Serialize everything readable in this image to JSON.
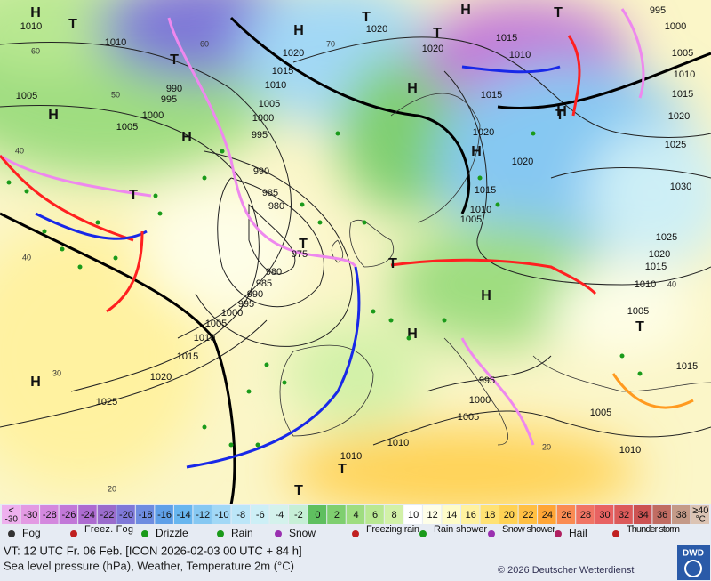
{
  "map": {
    "pressure_labels": [
      "1010",
      "1010",
      "1005",
      "1005",
      "1000",
      "990",
      "995",
      "1015",
      "1010",
      "1005",
      "1000",
      "995",
      "990",
      "985",
      "980",
      "975",
      "980",
      "985",
      "990",
      "995",
      "1000",
      "1005",
      "1010",
      "1015",
      "1020",
      "1025",
      "1020",
      "1020",
      "1020",
      "1015",
      "1010",
      "1015",
      "1020",
      "1020",
      "1015",
      "1010",
      "1005",
      "1000",
      "1005",
      "1010",
      "1015",
      "1020",
      "1025",
      "1030",
      "1025",
      "1020",
      "1015",
      "1010",
      "1005",
      "995",
      "1015",
      "1005",
      "1010",
      "1000",
      "995",
      "1005",
      "1010",
      "1010"
    ],
    "centers": [
      "H",
      "T",
      "H",
      "H",
      "T",
      "H",
      "T",
      "H",
      "T",
      "H",
      "T",
      "H",
      "T",
      "H",
      "T",
      "T",
      "T",
      "H",
      "H",
      "T",
      "H",
      "T",
      "T"
    ],
    "temperature_labels": [
      "60",
      "50",
      "40",
      "40",
      "30",
      "20",
      "20",
      "60",
      "70",
      "40"
    ]
  },
  "scale": {
    "cells": [
      {
        "label": "<",
        "label2": "-30",
        "color": "#eeb0ee"
      },
      {
        "label": "-30",
        "color": "#e39ae3"
      },
      {
        "label": "-28",
        "color": "#d488de"
      },
      {
        "label": "-26",
        "color": "#c278d8"
      },
      {
        "label": "-24",
        "color": "#ad6bd0"
      },
      {
        "label": "-22",
        "color": "#9a6ccc"
      },
      {
        "label": "-20",
        "color": "#7f78d8"
      },
      {
        "label": "-18",
        "color": "#6e8ce0"
      },
      {
        "label": "-16",
        "color": "#5fa0e8"
      },
      {
        "label": "-14",
        "color": "#68b6ef"
      },
      {
        "label": "-12",
        "color": "#86c8f2"
      },
      {
        "label": "-10",
        "color": "#a2d8f6"
      },
      {
        "label": "-8",
        "color": "#bce6f8"
      },
      {
        "label": "-6",
        "color": "#cdeff6"
      },
      {
        "label": "-4",
        "color": "#d4f2ec"
      },
      {
        "label": "-2",
        "color": "#c6efd6"
      },
      {
        "label": "0",
        "color": "#5fbf5f"
      },
      {
        "label": "2",
        "color": "#7fcf6f"
      },
      {
        "label": "4",
        "color": "#9fdd80"
      },
      {
        "label": "6",
        "color": "#b9e892"
      },
      {
        "label": "8",
        "color": "#d2f1a8"
      },
      {
        "label": "10",
        "color": "#ffffff"
      },
      {
        "label": "12",
        "color": "#fefee8"
      },
      {
        "label": "14",
        "color": "#fefcc8"
      },
      {
        "label": "16",
        "color": "#fff2a0"
      },
      {
        "label": "18",
        "color": "#ffe274"
      },
      {
        "label": "20",
        "color": "#ffd254"
      },
      {
        "label": "22",
        "color": "#ffbf42"
      },
      {
        "label": "24",
        "color": "#ffa535"
      },
      {
        "label": "26",
        "color": "#fa8b52"
      },
      {
        "label": "28",
        "color": "#f07464"
      },
      {
        "label": "30",
        "color": "#e86262"
      },
      {
        "label": "32",
        "color": "#dc5a5a"
      },
      {
        "label": "34",
        "color": "#cc5252"
      },
      {
        "label": "36",
        "color": "#c06c62"
      },
      {
        "label": "38",
        "color": "#c49a88"
      },
      {
        "label": "≥40",
        "label2": "°C",
        "color": "#dcc4b4"
      }
    ]
  },
  "legend": [
    "Fog",
    "Freez. Fog",
    "Drizzle",
    "Rain",
    "Snow",
    "Freezing rain",
    "Rain shower",
    "Snow shower",
    "Hail",
    "Thunder storm"
  ],
  "footer": {
    "valid_time": "VT: 12 UTC Fr.  06 Feb. [ICON 2026-02-03  00 UTC + 84 h]",
    "subtitle": "Sea level pressure (hPa), Weather, Temperature 2m (°C)",
    "copyright": "© 2026 Deutscher Wetterdienst",
    "logo": "DWD"
  }
}
